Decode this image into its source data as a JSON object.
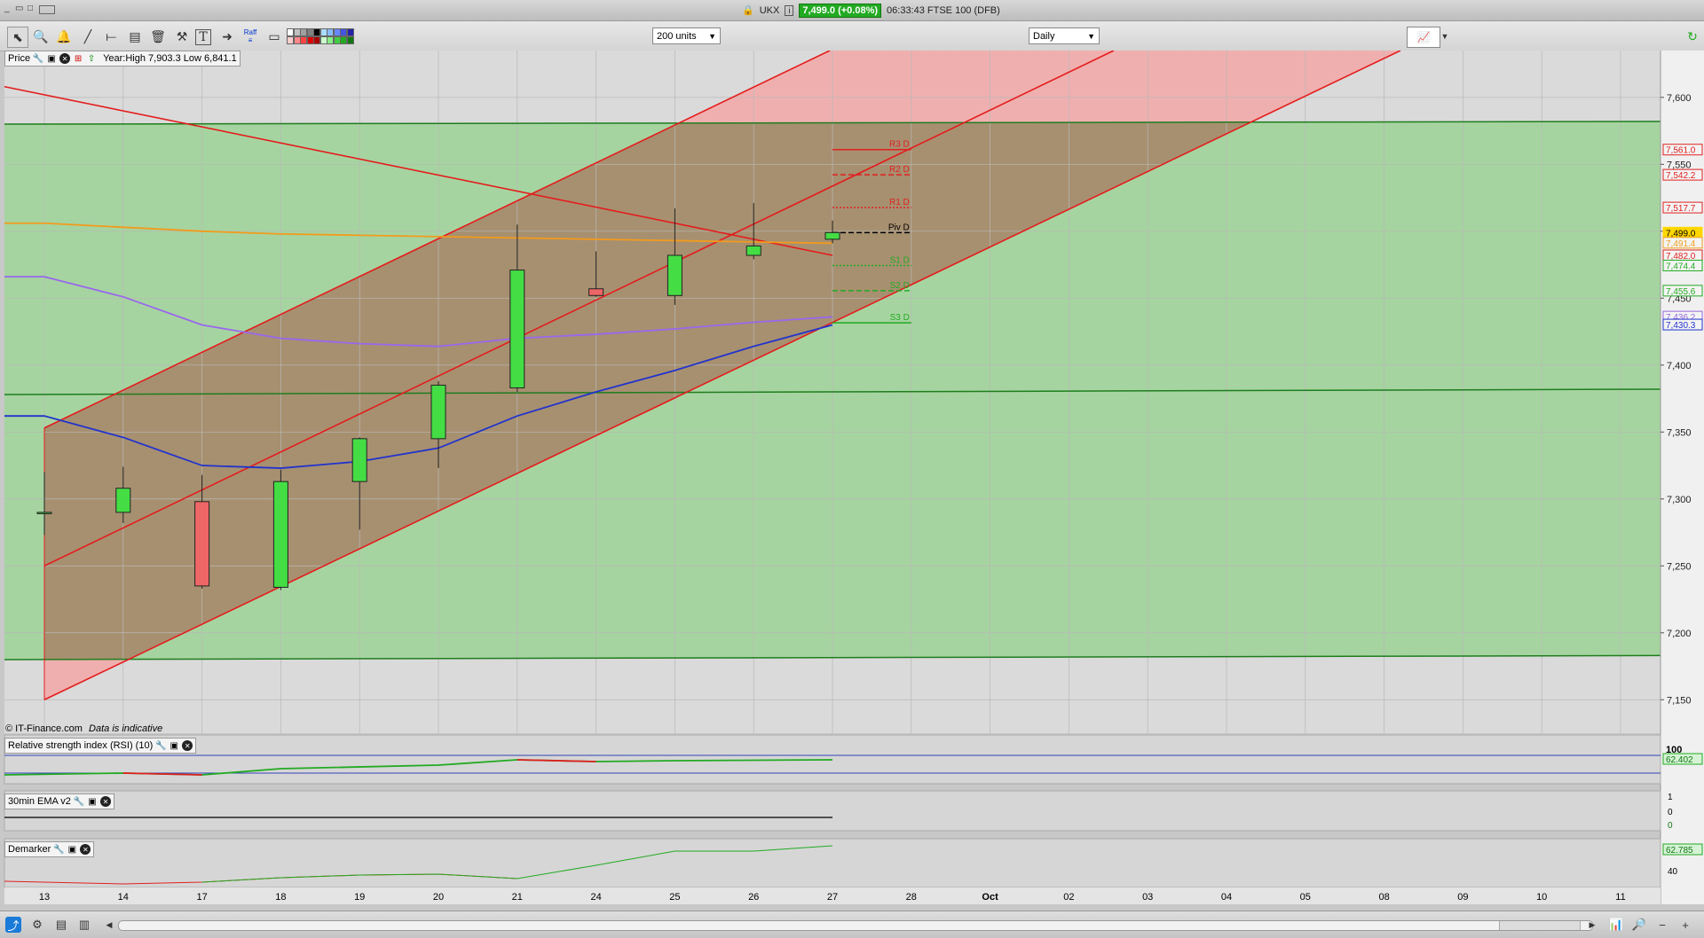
{
  "titlebar": {
    "symbol": "UKX",
    "price_chip": "7,499.0 (+0.08%)",
    "time_instrument": "06:33:43 FTSE 100 (DFB)",
    "window_controls": [
      "minimize-icon",
      "restore-icon",
      "maximize-icon",
      "keyboard-icon"
    ]
  },
  "toolbar": {
    "units_select": "200 units",
    "interval_select": "Daily",
    "raff_label": "Raff",
    "tools": [
      "pointer-icon",
      "zoom-icon",
      "alert-bell-icon",
      "trendline-icon",
      "horizontal-line-icon",
      "fibonacci-icon",
      "trash-icon",
      "settings-icon",
      "text-icon",
      "arrow-icon",
      "raff-channel-icon",
      "rectangle-icon"
    ],
    "swatch_colors": [
      "#ffffff",
      "#c0c0c0",
      "#a0a0a0",
      "#808080",
      "#000000",
      "#aaddff",
      "#88bbff",
      "#6688ff",
      "#4455dd",
      "#2222aa",
      "#ffcccc",
      "#ff8888",
      "#ff4444",
      "#dd0000",
      "#aa0000",
      "#ccffcc",
      "#88ee88",
      "#44cc44",
      "#22aa22",
      "#117711"
    ]
  },
  "price_pane": {
    "label": "Price",
    "year_info": "Year:High 7,903.3 Low 6,841.1",
    "copyright": "© IT-Finance.com",
    "disclaimer": "Data is indicative",
    "y_ticks": [
      "7,600",
      "7,550",
      "7,500",
      "7,450",
      "7,400",
      "7,350",
      "7,300",
      "7,250",
      "7,200",
      "7,150"
    ],
    "price_tags": [
      {
        "text": "7,561.0",
        "color": "#e02020",
        "value": 7561.0
      },
      {
        "text": "7,542.2",
        "color": "#e02020",
        "value": 7542.2
      },
      {
        "text": "7,517.7",
        "color": "#e02020",
        "value": 7517.7
      },
      {
        "text": "7,499.0",
        "color": "#ffd700",
        "value": 7499.0
      },
      {
        "text": "7,491.4",
        "color": "#f0a020",
        "value": 7491.4
      },
      {
        "text": "7,482.0",
        "color": "#e02020",
        "value": 7482.0
      },
      {
        "text": "7,474.4",
        "color": "#22aa22",
        "value": 7474.4
      },
      {
        "text": "7,455.6",
        "color": "#22aa22",
        "value": 7455.6
      },
      {
        "text": "7,436.2",
        "color": "#9966dd",
        "value": 7436.2
      },
      {
        "text": "7,430.3",
        "color": "#2233cc",
        "value": 7430.3
      }
    ],
    "pivot_levels": [
      {
        "label": "R3 D",
        "value": 7561.0,
        "color": "#e02020",
        "style": "solid"
      },
      {
        "label": "R2 D",
        "value": 7542.2,
        "color": "#e02020",
        "style": "dashed"
      },
      {
        "label": "R1 D",
        "value": 7517.7,
        "color": "#e02020",
        "style": "dotted"
      },
      {
        "label": "Piv D",
        "value": 7499.0,
        "color": "#000000",
        "style": "dashed"
      },
      {
        "label": "S1 D",
        "value": 7474.4,
        "color": "#22aa22",
        "style": "dotted"
      },
      {
        "label": "S2 D",
        "value": 7455.6,
        "color": "#22aa22",
        "style": "dashed"
      },
      {
        "label": "S3 D",
        "value": 7431.6,
        "color": "#22aa22",
        "style": "solid"
      }
    ]
  },
  "chart_data": {
    "type": "candlestick",
    "x_labels": [
      "13",
      "14",
      "17",
      "18",
      "19",
      "20",
      "21",
      "24",
      "25",
      "26",
      "27",
      "28",
      "Oct",
      "02",
      "03",
      "04",
      "05",
      "08",
      "09",
      "10",
      "11"
    ],
    "ylim": [
      7125,
      7635
    ],
    "candles": [
      {
        "date": "13",
        "open": 7290,
        "high": 7320,
        "low": 7273,
        "close": 7290
      },
      {
        "date": "14",
        "open": 7290,
        "high": 7324,
        "low": 7282,
        "close": 7308
      },
      {
        "date": "17",
        "open": 7298,
        "high": 7318,
        "low": 7233,
        "close": 7235
      },
      {
        "date": "18",
        "open": 7234,
        "high": 7322,
        "low": 7232,
        "close": 7313
      },
      {
        "date": "19",
        "open": 7313,
        "high": 7346,
        "low": 7277,
        "close": 7345
      },
      {
        "date": "20",
        "open": 7345,
        "high": 7388,
        "low": 7323,
        "close": 7385
      },
      {
        "date": "21",
        "open": 7383,
        "high": 7505,
        "low": 7380,
        "close": 7471
      },
      {
        "date": "24",
        "open": 7457,
        "high": 7485,
        "low": 7451,
        "close": 7452
      },
      {
        "date": "25",
        "open": 7452,
        "high": 7517,
        "low": 7445,
        "close": 7482
      },
      {
        "date": "26",
        "open": 7482,
        "high": 7521,
        "low": 7479,
        "close": 7489
      },
      {
        "date": "27",
        "open": 7494,
        "high": 7508,
        "low": 7491,
        "close": 7499
      }
    ],
    "ema_blue": [
      7362,
      7346,
      7325,
      7323,
      7328,
      7338,
      7362,
      7380,
      7396,
      7414,
      7430
    ],
    "ma_purple": [
      7466,
      7451,
      7430,
      7420,
      7416,
      7414,
      7420,
      7423,
      7427,
      7432,
      7436
    ],
    "ma_orange": [
      7506,
      7503,
      7500,
      7498,
      7497,
      7496,
      7495,
      7494,
      7493,
      7492,
      7491
    ],
    "rsi": {
      "label": "Relative strength index (RSI) (10)",
      "top_tick": "100",
      "value": "62.402"
    },
    "ema30": {
      "label": "30min EMA v2",
      "ticks": [
        "1",
        "0"
      ],
      "value": "0"
    },
    "demarker": {
      "label": "Demarker",
      "value": "62.785",
      "tick": "40"
    }
  },
  "colors": {
    "green_zone": "#a6d4a0",
    "red_zone": "#f7a0a0",
    "channel_fill": "#a79070",
    "red_line": "#e41c1c",
    "green_line": "#1e7d1e"
  }
}
